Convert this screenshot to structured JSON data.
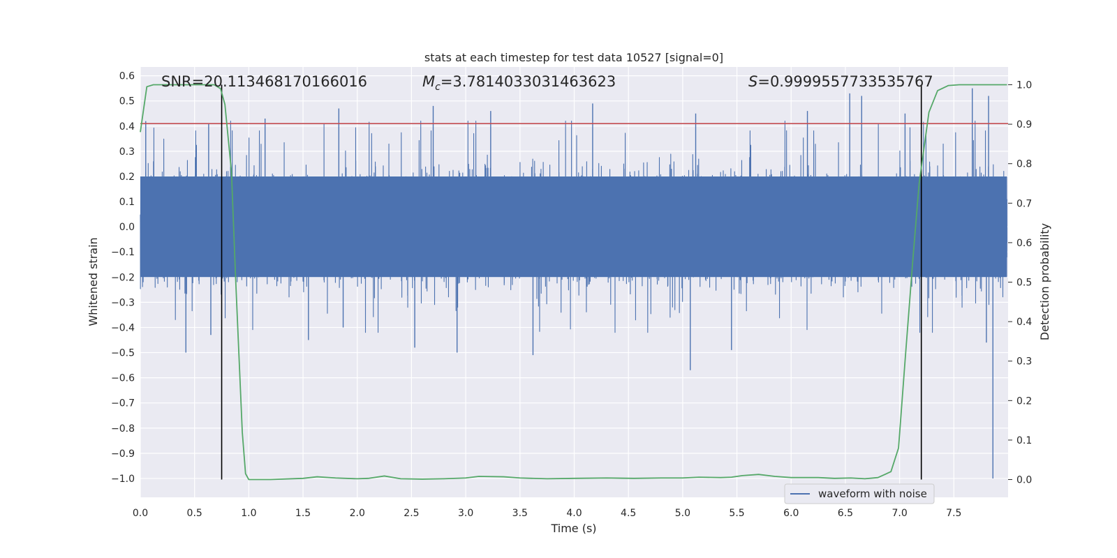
{
  "chart_data": {
    "type": "line",
    "title": "stats at each timestep for test data 10527 [signal=0]",
    "xlabel": "Time (s)",
    "ylabel": "Whitened strain",
    "y2label": "Detection probability",
    "xlim": [
      0.0,
      8.0
    ],
    "ylim": [
      -1.075,
      0.635
    ],
    "y2lim": [
      -0.045,
      1.045
    ],
    "xticks": [
      0.0,
      0.5,
      1.0,
      1.5,
      2.0,
      2.5,
      3.0,
      3.5,
      4.0,
      4.5,
      5.0,
      5.5,
      6.0,
      6.5,
      7.0,
      7.5
    ],
    "xtick_labels": [
      "0.0",
      "0.5",
      "1.0",
      "1.5",
      "2.0",
      "2.5",
      "3.0",
      "3.5",
      "4.0",
      "4.5",
      "5.0",
      "5.5",
      "6.0",
      "6.5",
      "7.0",
      "7.5"
    ],
    "yticks": [
      -1.0,
      -0.9,
      -0.8,
      -0.7,
      -0.6,
      -0.5,
      -0.4,
      -0.3,
      -0.2,
      -0.1,
      0.0,
      0.1,
      0.2,
      0.3,
      0.4,
      0.5,
      0.6
    ],
    "ytick_labels": [
      "−1.0",
      "−0.9",
      "−0.8",
      "−0.7",
      "−0.6",
      "−0.5",
      "−0.4",
      "−0.3",
      "−0.2",
      "−0.1",
      "0.0",
      "0.1",
      "0.2",
      "0.3",
      "0.4",
      "0.5",
      "0.6"
    ],
    "y2ticks": [
      0.0,
      0.1,
      0.2,
      0.3,
      0.4,
      0.5,
      0.6,
      0.7,
      0.8,
      0.9,
      1.0
    ],
    "y2tick_labels": [
      "0.0",
      "0.1",
      "0.2",
      "0.3",
      "0.4",
      "0.5",
      "0.6",
      "0.7",
      "0.8",
      "0.9",
      "1.0"
    ],
    "annotations": {
      "snr": "SNR=20.113468170166016",
      "mc_symbol": "M",
      "mc_sub": "c",
      "mc_value": "=3.7814033031463623",
      "s_symbol": "S",
      "s_value": "=0.9999557733535767"
    },
    "legend": {
      "label": "waveform with noise",
      "placement": "lower-right"
    },
    "noise_series": {
      "name": "waveform with noise",
      "color": "#4c72b0",
      "sample_rate": 2048,
      "duration": 7.99,
      "core_amplitude": 0.2,
      "spikes": [
        {
          "x": 0.05,
          "y": 0.42
        },
        {
          "x": 0.42,
          "y": -0.5
        },
        {
          "x": 0.63,
          "y": 0.41
        },
        {
          "x": 0.65,
          "y": -0.43
        },
        {
          "x": 1.15,
          "y": 0.43
        },
        {
          "x": 1.55,
          "y": -0.45
        },
        {
          "x": 1.83,
          "y": 0.47
        },
        {
          "x": 1.87,
          "y": -0.4
        },
        {
          "x": 2.53,
          "y": -0.48
        },
        {
          "x": 2.7,
          "y": 0.48
        },
        {
          "x": 2.92,
          "y": -0.5
        },
        {
          "x": 3.23,
          "y": 0.46
        },
        {
          "x": 3.62,
          "y": -0.51
        },
        {
          "x": 4.17,
          "y": 0.49
        },
        {
          "x": 5.07,
          "y": -0.57
        },
        {
          "x": 5.12,
          "y": 0.45
        },
        {
          "x": 5.45,
          "y": -0.49
        },
        {
          "x": 6.15,
          "y": 0.46
        },
        {
          "x": 6.54,
          "y": 0.53
        },
        {
          "x": 6.65,
          "y": 0.52
        },
        {
          "x": 7.05,
          "y": 0.45
        },
        {
          "x": 7.67,
          "y": 0.55
        },
        {
          "x": 7.8,
          "y": -0.46
        },
        {
          "x": 7.82,
          "y": 0.52
        },
        {
          "x": 7.86,
          "y": -1.0
        }
      ]
    },
    "probability_series": {
      "name": "Detection probability",
      "color": "#55a868",
      "points": [
        [
          0.0,
          0.88
        ],
        [
          0.06,
          0.995
        ],
        [
          0.12,
          1.0
        ],
        [
          0.3,
          1.0
        ],
        [
          0.5,
          1.0
        ],
        [
          0.68,
          1.0
        ],
        [
          0.74,
          0.99
        ],
        [
          0.78,
          0.95
        ],
        [
          0.84,
          0.78
        ],
        [
          0.88,
          0.5
        ],
        [
          0.94,
          0.12
        ],
        [
          0.97,
          0.015
        ],
        [
          1.0,
          0.0
        ],
        [
          1.2,
          0.0
        ],
        [
          1.5,
          0.003
        ],
        [
          1.63,
          0.007
        ],
        [
          1.8,
          0.004
        ],
        [
          2.0,
          0.002
        ],
        [
          2.1,
          0.003
        ],
        [
          2.25,
          0.009
        ],
        [
          2.4,
          0.002
        ],
        [
          2.6,
          0.001
        ],
        [
          2.8,
          0.002
        ],
        [
          3.0,
          0.004
        ],
        [
          3.12,
          0.008
        ],
        [
          3.35,
          0.007
        ],
        [
          3.5,
          0.004
        ],
        [
          3.75,
          0.002
        ],
        [
          4.0,
          0.003
        ],
        [
          4.3,
          0.004
        ],
        [
          4.55,
          0.003
        ],
        [
          4.8,
          0.004
        ],
        [
          5.0,
          0.004
        ],
        [
          5.15,
          0.006
        ],
        [
          5.35,
          0.005
        ],
        [
          5.45,
          0.006
        ],
        [
          5.55,
          0.01
        ],
        [
          5.7,
          0.013
        ],
        [
          5.85,
          0.008
        ],
        [
          6.0,
          0.005
        ],
        [
          6.25,
          0.005
        ],
        [
          6.4,
          0.003
        ],
        [
          6.55,
          0.004
        ],
        [
          6.68,
          0.002
        ],
        [
          6.8,
          0.005
        ],
        [
          6.92,
          0.02
        ],
        [
          6.99,
          0.08
        ],
        [
          7.05,
          0.3
        ],
        [
          7.12,
          0.55
        ],
        [
          7.18,
          0.75
        ],
        [
          7.27,
          0.93
        ],
        [
          7.35,
          0.985
        ],
        [
          7.45,
          0.998
        ],
        [
          7.55,
          1.0
        ],
        [
          7.7,
          1.0
        ],
        [
          7.99,
          1.0
        ]
      ]
    },
    "threshold": {
      "y": 0.41,
      "color": "#c44e52"
    },
    "vlines": [
      {
        "x": 0.75,
        "color": "#000000",
        "y2_range": [
          0.0,
          1.0
        ]
      },
      {
        "x": 7.2,
        "color": "#000000",
        "y2_range": [
          0.0,
          1.0
        ]
      }
    ]
  }
}
